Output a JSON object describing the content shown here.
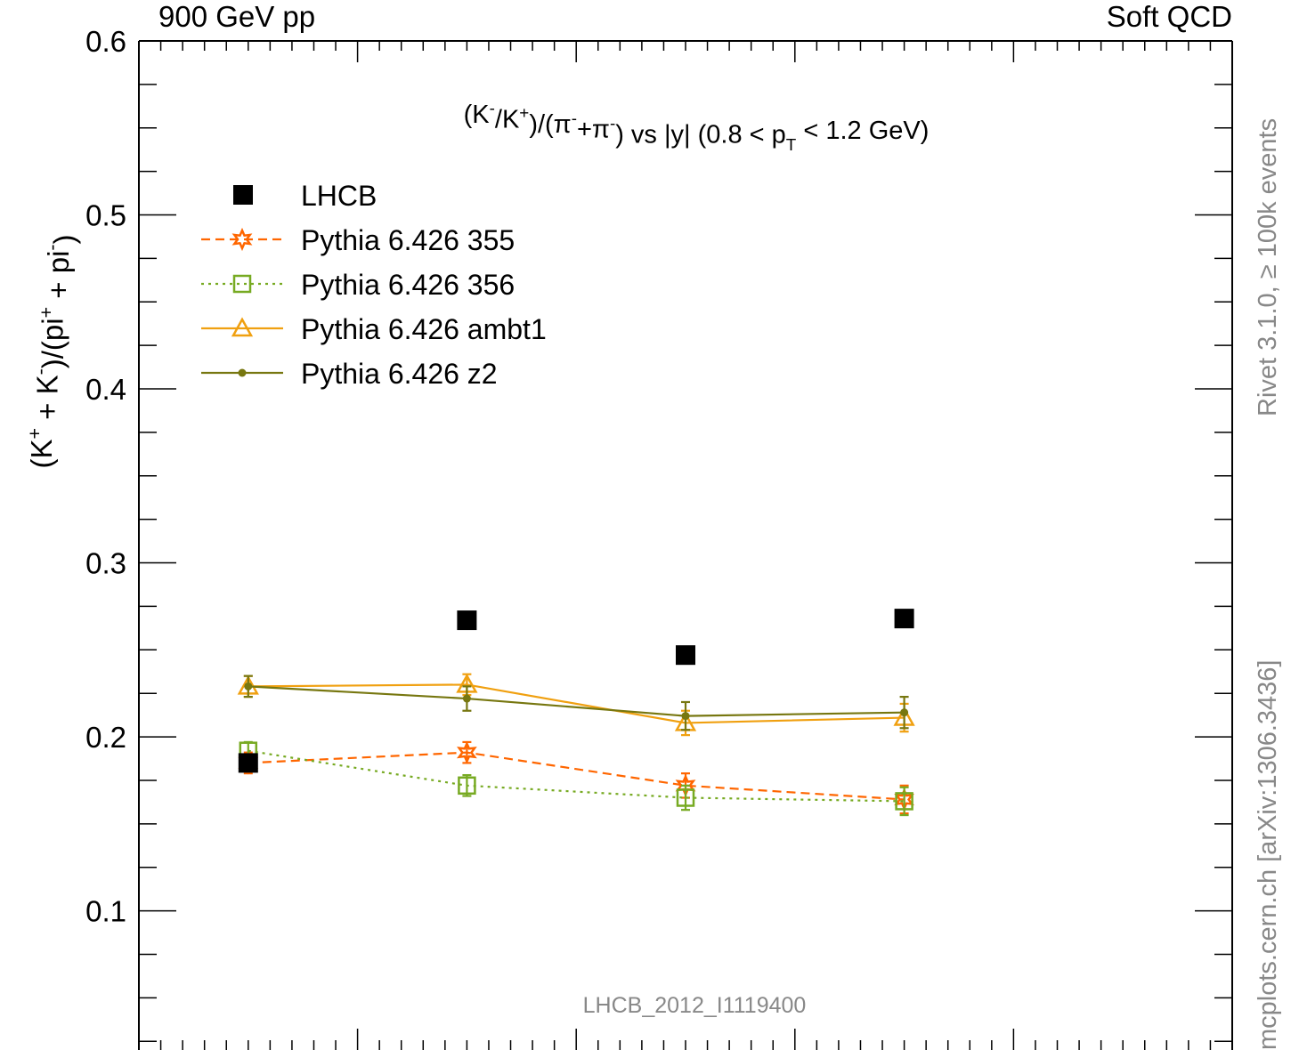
{
  "header": {
    "left": "900 GeV pp",
    "right": "Soft QCD"
  },
  "side": {
    "upper": "Rivet 3.1.0, ≥ 100k events",
    "lower": "mcplots.cern.ch [arXiv:1306.3436]"
  },
  "watermark": "LHCB_2012_I1119400",
  "colors": {
    "data": "#000000",
    "p355": "#ff6600",
    "p356": "#77aa22",
    "ambt1": "#f0a010",
    "z2": "#777710"
  },
  "chart_data": {
    "type": "scatter",
    "title": "(K⁻/K⁺)/(π⁻+π⁻) vs |y| (0.8 < p_T < 1.2 GeV)",
    "title_parts": [
      "(K",
      "-",
      "/K",
      "+",
      ")/(π",
      "-",
      "+π",
      "-",
      ") vs |y| (0.8 < p",
      "T",
      " < 1.2 GeV)"
    ],
    "ylabel_parts": [
      "(K",
      "+",
      " + K",
      "-",
      ")/(pi",
      "+",
      " + pi",
      "-",
      ")"
    ],
    "ylim": [
      0.02,
      0.6
    ],
    "xlim": [
      2.0,
      4.5
    ],
    "yticks": [
      0.1,
      0.2,
      0.3,
      0.4,
      0.5,
      0.6
    ],
    "ytick_labels": [
      "0.1",
      "0.2",
      "0.3",
      "0.4",
      "0.5",
      "0.6"
    ],
    "legend_position": "top-left",
    "x": [
      2.25,
      2.75,
      3.25,
      3.75
    ],
    "series": [
      {
        "name": "LHCB",
        "style": "data",
        "values": [
          0.185,
          0.267,
          0.247,
          0.268
        ]
      },
      {
        "name": "Pythia 6.426 355",
        "style": "dashed-star",
        "values": [
          0.185,
          0.191,
          0.172,
          0.164
        ],
        "err": [
          0.006,
          0.006,
          0.007,
          0.008
        ]
      },
      {
        "name": "Pythia 6.426 356",
        "style": "dotted-square",
        "values": [
          0.192,
          0.172,
          0.165,
          0.163
        ],
        "err": [
          0.005,
          0.006,
          0.007,
          0.008
        ]
      },
      {
        "name": "Pythia 6.426 ambt1",
        "style": "solid-triangle",
        "values": [
          0.229,
          0.23,
          0.208,
          0.211
        ],
        "err": [
          0.006,
          0.006,
          0.007,
          0.008
        ]
      },
      {
        "name": "Pythia 6.426 z2",
        "style": "solid-dot",
        "values": [
          0.229,
          0.222,
          0.212,
          0.214
        ],
        "err": [
          0.006,
          0.007,
          0.008,
          0.009
        ]
      }
    ]
  }
}
